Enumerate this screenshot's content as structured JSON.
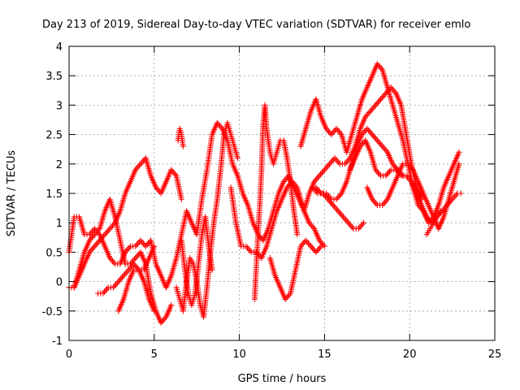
{
  "chart_data": {
    "type": "scatter",
    "title": "Day 213 of 2019, Sidereal Day-to-day VTEC variation (SDTVAR) for receiver emlo",
    "xlabel": "GPS time / hours",
    "ylabel": "SDTVAR / TECUs",
    "xlim": [
      0,
      25
    ],
    "ylim": [
      -1,
      4
    ],
    "xticks": [
      "0",
      "5",
      "10",
      "15",
      "20",
      "25"
    ],
    "yticks": [
      "-1",
      "-0.5",
      "0",
      "0.5",
      "1",
      "1.5",
      "2",
      "2.5",
      "3",
      "3.5",
      "4"
    ],
    "grid": true,
    "marker": "+",
    "color": "#ff0000",
    "series": [
      {
        "x": [
          0.0,
          0.3,
          0.6,
          0.9,
          1.2,
          1.5,
          1.8,
          2.1,
          2.4,
          2.7,
          3.0,
          3.3,
          3.6,
          3.9,
          4.2,
          4.5,
          4.8,
          5.1,
          5.4,
          5.7,
          6.0,
          6.3,
          6.6,
          6.9,
          7.2,
          7.5,
          7.8,
          8.1,
          8.4,
          8.7,
          9.0,
          9.3,
          9.6,
          9.9,
          10.2,
          10.5,
          10.8,
          11.1,
          11.4,
          11.7,
          12.0,
          12.3,
          12.6,
          12.9,
          13.2,
          13.5,
          13.8,
          14.1,
          14.4,
          14.7,
          15.0
        ],
        "y": [
          0.5,
          1.1,
          1.1,
          0.8,
          0.8,
          0.9,
          0.8,
          0.6,
          0.4,
          0.3,
          0.3,
          0.5,
          0.6,
          0.6,
          0.7,
          0.6,
          0.7,
          0.3,
          0.1,
          -0.1,
          0.1,
          0.4,
          0.8,
          1.2,
          1.0,
          0.8,
          1.4,
          1.9,
          2.5,
          2.7,
          2.6,
          2.4,
          2.0,
          1.8,
          1.5,
          1.3,
          1.0,
          0.8,
          0.7,
          0.9,
          1.2,
          1.5,
          1.7,
          1.8,
          1.6,
          1.4,
          1.2,
          1.0,
          0.9,
          0.7,
          0.6
        ]
      },
      {
        "x": [
          0.0,
          0.3,
          0.6,
          0.9,
          1.2,
          1.5,
          1.8,
          2.1,
          2.4,
          2.7,
          3.0,
          3.3,
          3.6,
          3.9,
          4.2,
          4.5,
          4.8,
          5.1,
          5.4,
          5.7,
          6.0,
          6.3,
          6.6
        ],
        "y": [
          -0.1,
          -0.1,
          0.1,
          0.3,
          0.5,
          0.6,
          0.7,
          0.8,
          0.9,
          1.0,
          1.2,
          1.5,
          1.7,
          1.9,
          2.0,
          2.1,
          1.8,
          1.6,
          1.5,
          1.7,
          1.9,
          1.8,
          1.4
        ]
      },
      {
        "x": [
          0.3,
          0.6,
          0.9,
          1.2,
          1.5,
          1.8,
          2.1,
          2.4,
          2.7,
          3.0,
          3.3,
          3.6,
          3.9,
          4.2,
          4.5,
          4.8,
          5.1,
          5.4,
          5.7,
          6.0
        ],
        "y": [
          -0.1,
          0.2,
          0.5,
          0.7,
          0.8,
          0.9,
          1.2,
          1.4,
          1.1,
          0.7,
          0.3,
          0.3,
          0.4,
          0.5,
          0.3,
          -0.2,
          -0.5,
          -0.7,
          -0.6,
          -0.4
        ]
      },
      {
        "x": [
          1.7,
          2.0,
          2.3,
          2.6,
          2.9,
          3.2,
          3.5,
          3.8,
          4.1,
          4.4,
          4.7,
          5.0
        ],
        "y": [
          -0.2,
          -0.2,
          -0.1,
          -0.1,
          0.0,
          0.1,
          0.2,
          0.3,
          0.2,
          0.2,
          0.4,
          0.6
        ]
      },
      {
        "x": [
          2.9,
          3.2,
          3.5,
          3.8,
          4.1,
          4.4,
          4.7,
          5.0
        ],
        "y": [
          -0.5,
          -0.3,
          0.0,
          0.2,
          0.2,
          0.0,
          -0.3,
          -0.5
        ]
      },
      {
        "x": [
          6.3,
          6.5,
          6.7,
          6.9,
          7.1,
          7.3,
          7.5,
          7.7,
          7.9,
          8.1,
          8.3,
          8.5,
          8.7,
          8.9,
          9.1,
          9.3,
          9.5,
          9.7,
          9.9
        ],
        "y": [
          -0.1,
          -0.3,
          -0.5,
          0.0,
          0.4,
          0.3,
          0.0,
          -0.4,
          -0.6,
          -0.1,
          0.5,
          1.0,
          1.4,
          1.9,
          2.5,
          2.7,
          2.5,
          2.3,
          2.1
        ]
      },
      {
        "x": [
          6.6,
          6.8,
          7.0,
          7.2,
          7.4,
          7.6,
          7.8,
          8.0,
          8.2,
          8.4
        ],
        "y": [
          0.7,
          0.2,
          -0.2,
          -0.4,
          -0.2,
          0.3,
          0.8,
          1.1,
          0.6,
          0.2
        ]
      },
      {
        "x": [
          6.4,
          6.5,
          6.6,
          6.7
        ],
        "y": [
          2.4,
          2.6,
          2.5,
          2.3
        ]
      },
      {
        "x": [
          9.5,
          9.8,
          10.1,
          10.4,
          10.7,
          11.0,
          11.3,
          11.6,
          11.9,
          12.2,
          12.5,
          12.8,
          13.1,
          13.4,
          13.7
        ],
        "y": [
          1.6,
          1.0,
          0.6,
          0.6,
          0.5,
          0.5,
          0.4,
          0.6,
          0.9,
          1.2,
          1.4,
          1.6,
          1.7,
          1.6,
          1.3
        ]
      },
      {
        "x": [
          10.9,
          11.0,
          11.1,
          11.2,
          11.3,
          11.4,
          11.5,
          11.6,
          11.8,
          12.0,
          12.2,
          12.4,
          12.6,
          12.8,
          13.0,
          13.2,
          13.4
        ],
        "y": [
          -0.3,
          0.3,
          0.8,
          1.3,
          1.9,
          2.7,
          3.0,
          2.6,
          2.2,
          2.0,
          2.2,
          2.4,
          2.4,
          2.1,
          1.7,
          1.2,
          0.8
        ]
      },
      {
        "x": [
          11.8,
          12.1,
          12.4,
          12.7,
          13.0,
          13.3,
          13.6,
          13.9,
          14.2,
          14.5,
          14.8
        ],
        "y": [
          0.4,
          0.1,
          -0.1,
          -0.3,
          -0.2,
          0.2,
          0.6,
          0.7,
          0.6,
          0.5,
          0.6
        ]
      },
      {
        "x": [
          13.6,
          13.9,
          14.2,
          14.5,
          14.8,
          15.1,
          15.4,
          15.7,
          16.0,
          16.3,
          16.6,
          16.9,
          17.2,
          17.5,
          17.8,
          18.1,
          18.4,
          18.7,
          19.0,
          19.3,
          19.6,
          19.9,
          20.2,
          20.5,
          20.8,
          21.1,
          21.4,
          21.7,
          22.0,
          22.3,
          22.6,
          22.9
        ],
        "y": [
          2.3,
          2.6,
          2.9,
          3.1,
          2.8,
          2.6,
          2.5,
          2.6,
          2.5,
          2.2,
          2.5,
          2.8,
          3.1,
          3.3,
          3.5,
          3.7,
          3.6,
          3.3,
          3.0,
          2.7,
          2.4,
          2.0,
          1.6,
          1.3,
          1.2,
          1.0,
          1.1,
          1.3,
          1.6,
          1.8,
          2.0,
          2.2
        ]
      },
      {
        "x": [
          13.8,
          14.1,
          14.4,
          14.7,
          15.0,
          15.3,
          15.6,
          15.9,
          16.2,
          16.5,
          16.8,
          17.1,
          17.4,
          17.7,
          18.0,
          18.3,
          18.6,
          18.9,
          19.2,
          19.5,
          19.8,
          20.1,
          20.4,
          20.7
        ],
        "y": [
          1.2,
          1.5,
          1.7,
          1.8,
          1.9,
          2.0,
          2.1,
          2.0,
          2.0,
          2.1,
          2.3,
          2.6,
          2.8,
          2.9,
          3.0,
          3.1,
          3.2,
          3.3,
          3.2,
          3.0,
          2.5,
          2.0,
          1.6,
          1.4
        ]
      },
      {
        "x": [
          14.3,
          14.6,
          14.9,
          15.2,
          15.5,
          15.8,
          16.1,
          16.4,
          16.7,
          17.0,
          17.3
        ],
        "y": [
          1.6,
          1.5,
          1.5,
          1.4,
          1.3,
          1.2,
          1.1,
          1.0,
          0.9,
          0.9,
          1.0
        ]
      },
      {
        "x": [
          14.5,
          14.8,
          15.1,
          15.4,
          15.7,
          16.0,
          16.3,
          16.6,
          16.9,
          17.2,
          17.5,
          17.8,
          18.1,
          18.4,
          18.7,
          19.0,
          19.3,
          19.6
        ],
        "y": [
          1.6,
          1.5,
          1.5,
          1.4,
          1.4,
          1.5,
          1.7,
          2.0,
          2.3,
          2.5,
          2.6,
          2.5,
          2.4,
          2.3,
          2.2,
          2.0,
          1.9,
          1.8
        ]
      },
      {
        "x": [
          16.5,
          16.8,
          17.1,
          17.4,
          17.7,
          18.0,
          18.3,
          18.6,
          18.9,
          19.2,
          19.5,
          19.8,
          20.1,
          20.4,
          20.7,
          21.0,
          21.3,
          21.6,
          21.9,
          22.2,
          22.5,
          22.8,
          23.0
        ],
        "y": [
          1.9,
          2.1,
          2.3,
          2.4,
          2.2,
          1.9,
          1.8,
          1.8,
          1.9,
          1.9,
          1.8,
          1.8,
          1.7,
          1.5,
          1.3,
          1.1,
          1.0,
          1.1,
          1.2,
          1.3,
          1.4,
          1.5,
          1.5
        ]
      },
      {
        "x": [
          17.5,
          17.8,
          18.1,
          18.4,
          18.7,
          19.0,
          19.3,
          19.6,
          19.9,
          20.2,
          20.5,
          20.8,
          21.1,
          21.4,
          21.7,
          22.0,
          22.3,
          22.6,
          22.9
        ],
        "y": [
          1.6,
          1.4,
          1.3,
          1.3,
          1.4,
          1.6,
          1.8,
          2.0,
          2.0,
          1.9,
          1.7,
          1.5,
          1.3,
          1.1,
          0.9,
          1.1,
          1.4,
          1.7,
          2.0
        ]
      },
      {
        "x": [
          21.0,
          21.2,
          21.4,
          21.6,
          21.8
        ],
        "y": [
          0.8,
          0.9,
          1.0,
          1.1,
          1.2
        ]
      }
    ]
  }
}
